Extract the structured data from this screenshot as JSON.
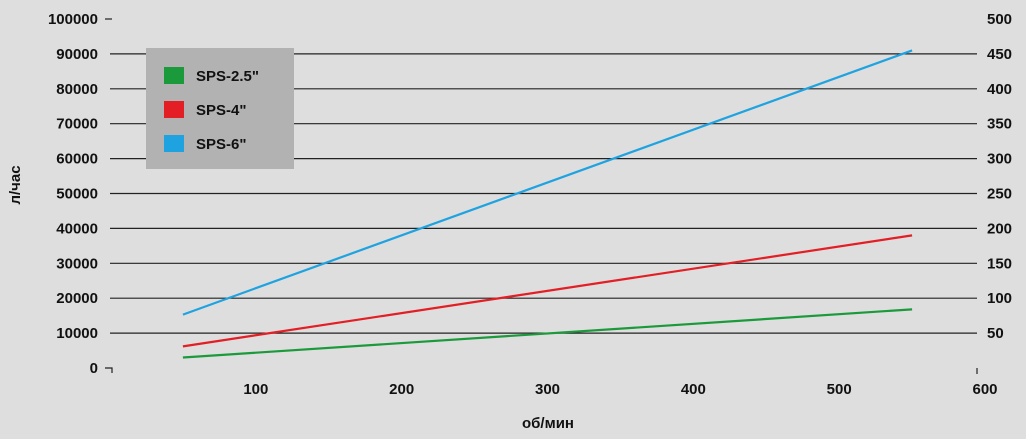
{
  "chart_data": {
    "type": "line",
    "xlabel": "об/мин",
    "ylabel": "л/час",
    "xlim": [
      0,
      600
    ],
    "ylim": [
      0,
      100000
    ],
    "y2lim": [
      0,
      500
    ],
    "x_ticks": [
      100,
      200,
      300,
      400,
      500,
      600
    ],
    "y_ticks": [
      0,
      10000,
      20000,
      30000,
      40000,
      50000,
      60000,
      70000,
      80000,
      90000,
      100000
    ],
    "y2_ticks": [
      50,
      100,
      150,
      200,
      250,
      300,
      350,
      400,
      450,
      500
    ],
    "grid": true,
    "legend_position": "top-left",
    "series": [
      {
        "name": "SPS-2.5\"",
        "color": "#1a9a3a",
        "x": [
          50,
          550
        ],
        "values": [
          3000,
          16800
        ]
      },
      {
        "name": "SPS-4\"",
        "color": "#e31e24",
        "x": [
          50,
          550
        ],
        "values": [
          6200,
          38000
        ]
      },
      {
        "name": "SPS-6\"",
        "color": "#1fa3e0",
        "x": [
          50,
          550
        ],
        "values": [
          15300,
          91000
        ]
      }
    ]
  }
}
